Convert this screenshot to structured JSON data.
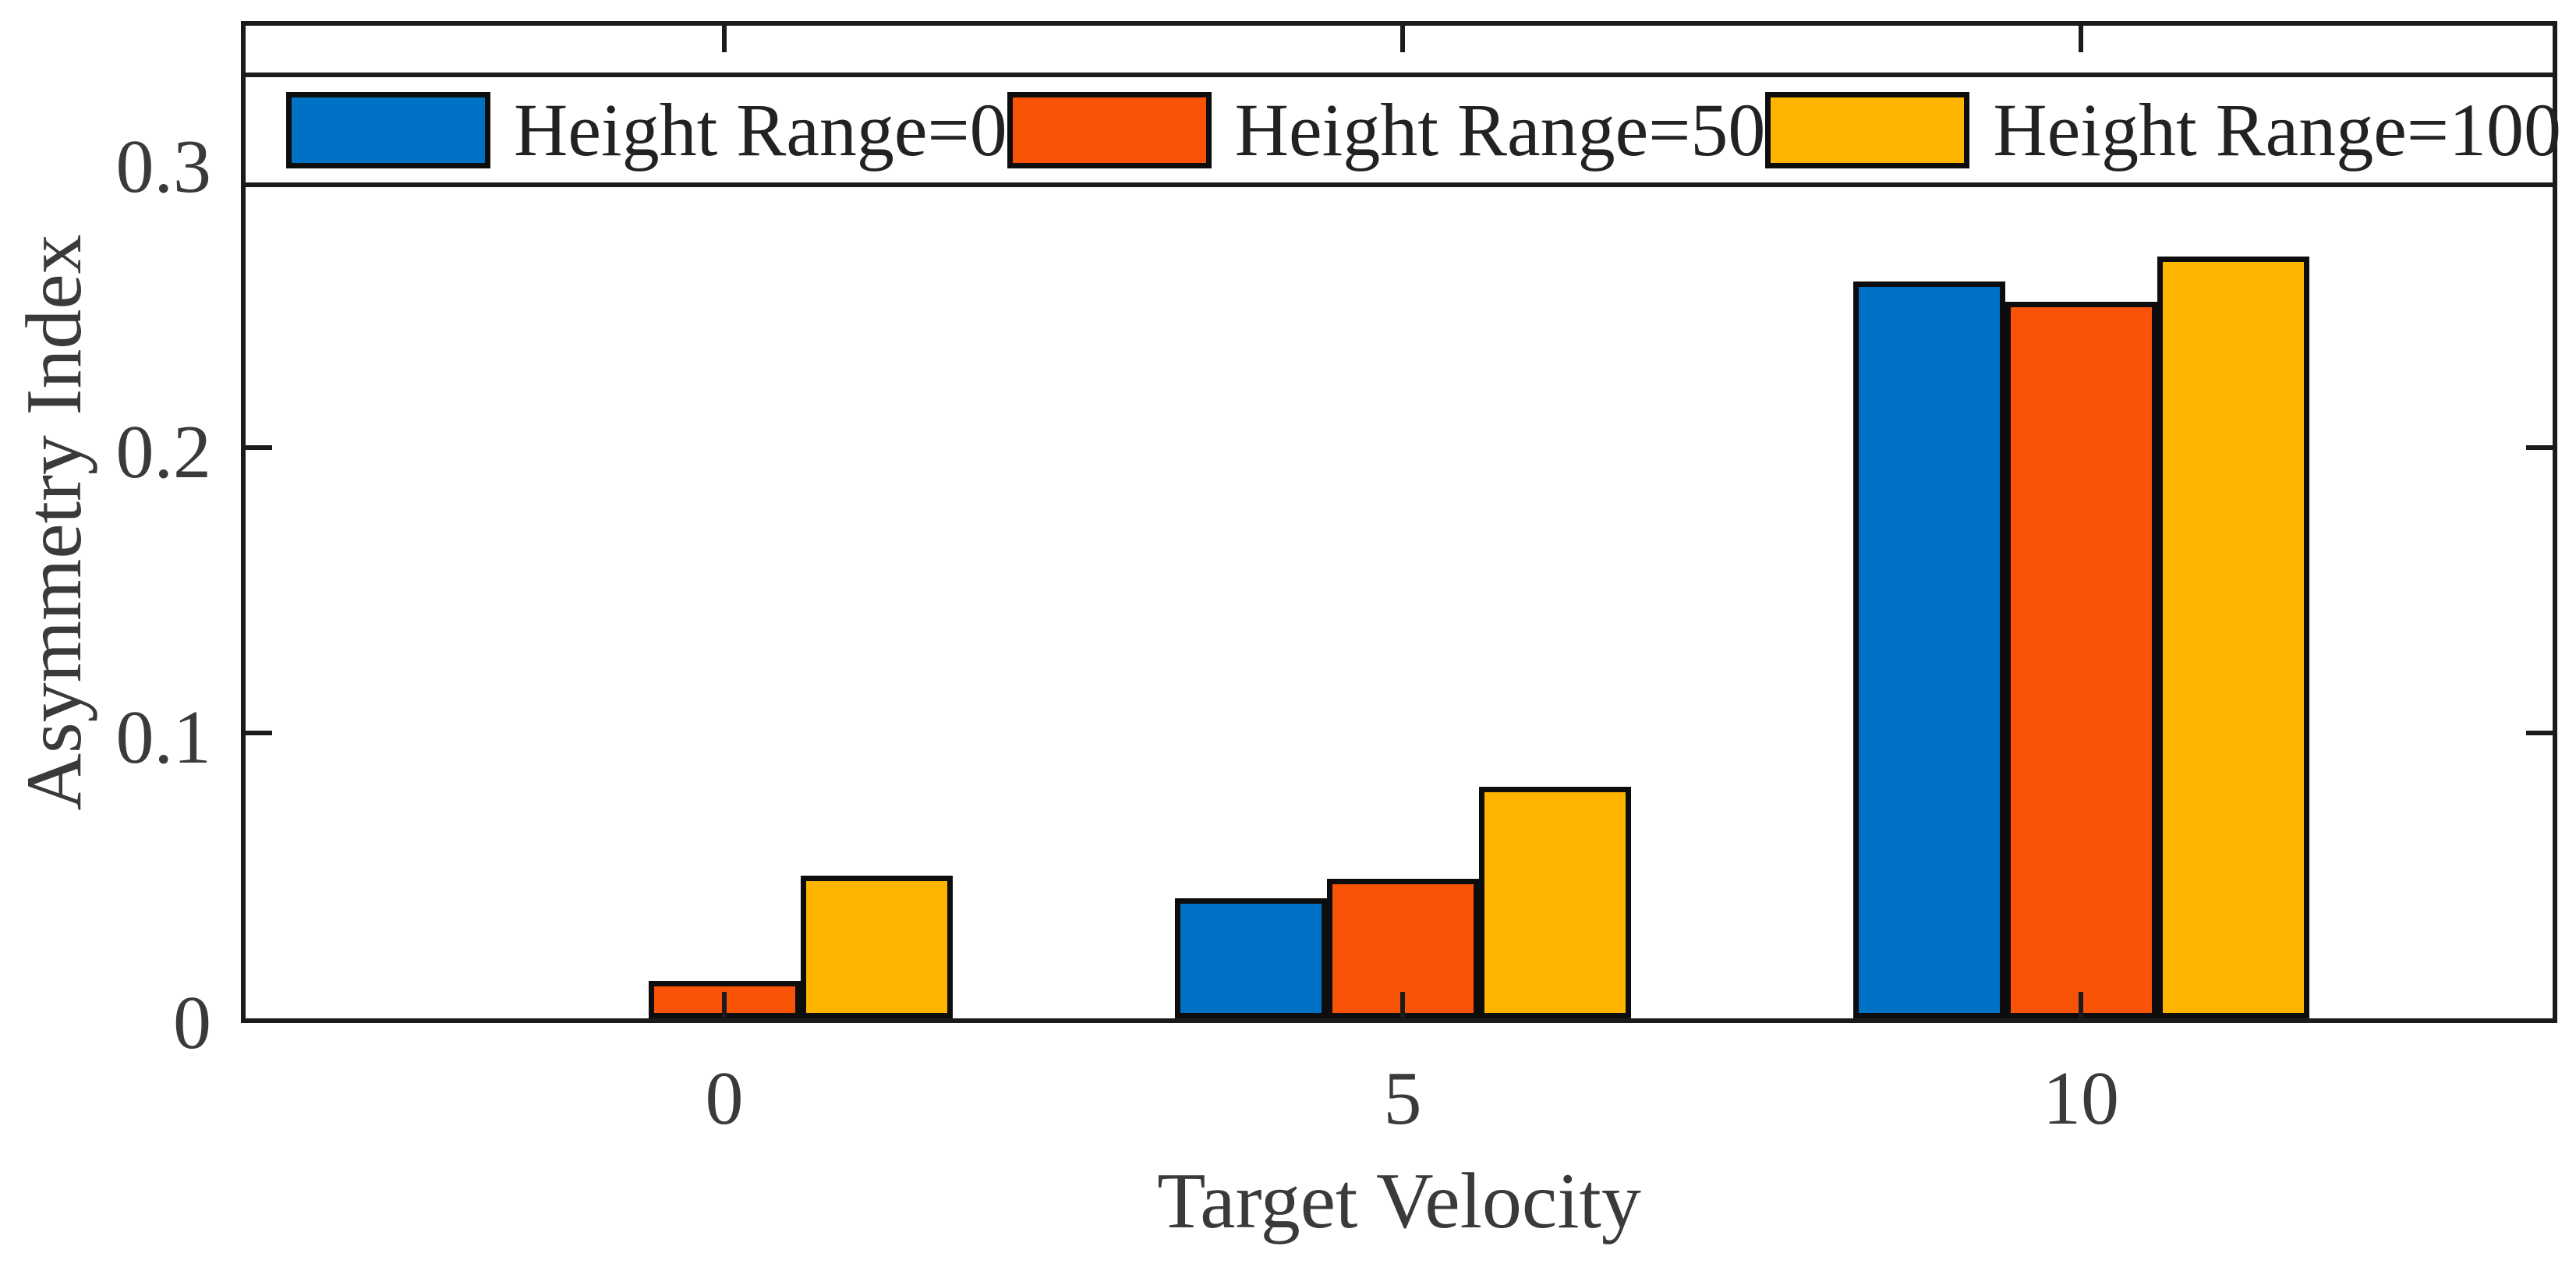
{
  "figure": {
    "background": "#ffffff",
    "frame_color": "#1b1b1b",
    "text_color": "#3a3a3a",
    "bar_edge_color": "#0d0d0d"
  },
  "chart_data": {
    "type": "bar",
    "title": "",
    "xlabel": "Target Velocity",
    "ylabel": "Asymmetry Index",
    "categories": [
      "0",
      "5",
      "10"
    ],
    "series": [
      {
        "name": "Height Range=0",
        "color": "#0072C6",
        "values": [
          0.0,
          0.042,
          0.258
        ]
      },
      {
        "name": "Height Range=50",
        "color": "#F95307",
        "values": [
          0.013,
          0.049,
          0.251
        ]
      },
      {
        "name": "Height Range=100",
        "color": "#FFB400",
        "values": [
          0.05,
          0.081,
          0.267
        ]
      }
    ],
    "ylim": [
      0,
      0.351
    ],
    "yticks": [
      0,
      0.1,
      0.2,
      0.3
    ],
    "ytick_labels": [
      "0",
      "0.1",
      "0.2",
      "0.3"
    ],
    "xticks_mirrored_top": true,
    "tick_direction": "in",
    "grid": false,
    "legend_position": "north-inside-full-width-strip",
    "legend_labels": [
      "Height Range=0",
      "Height Range=50",
      "Height Range=100"
    ]
  }
}
